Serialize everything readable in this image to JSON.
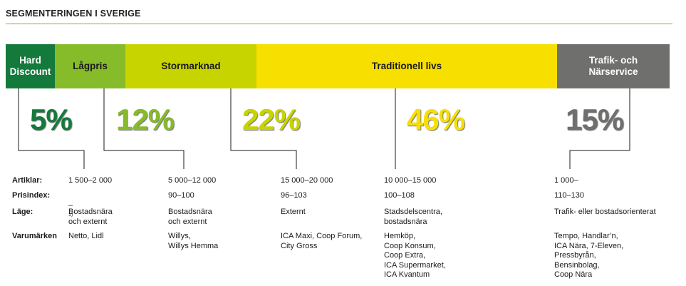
{
  "title": "SEGMENTERINGEN I SVERIGE",
  "colors": {
    "hard_discount": "#137a3c",
    "lagpris": "#86bb29",
    "stormarknad": "#c8d400",
    "traditionell": "#f7df00",
    "trafik": "#6f6f6e",
    "rule": "#9aa43a"
  },
  "segments": [
    {
      "label": "Hard\nDiscount",
      "percent": "5%"
    },
    {
      "label": "Lågpris",
      "percent": "12%"
    },
    {
      "label": "Stormarknad",
      "percent": "22%"
    },
    {
      "label": "Traditionell livs",
      "percent": "46%"
    },
    {
      "label": "Trafik- och\nNärservice",
      "percent": "15%"
    }
  ],
  "row_labels": {
    "artiklar": "Artiklar:",
    "prisindex": "Prisindex:",
    "lage": "Läge:",
    "varumarken": "Varumärken"
  },
  "columns": [
    {
      "artiklar": "1 500–2 000",
      "prisindex": "–",
      "prisindex_note": "1)",
      "lage": "Bostadsnära\noch externt",
      "varumarken": "Netto, Lidl"
    },
    {
      "artiklar": "5 000–12 000",
      "prisindex": "90–100",
      "lage": "Bostadsnära\noch externt",
      "varumarken": "Willys,\nWillys Hemma"
    },
    {
      "artiklar": "15 000–20 000",
      "prisindex": "96–103",
      "lage": "Externt",
      "varumarken": "ICA Maxi, Coop Forum,\nCity Gross"
    },
    {
      "artiklar": "10 000–15 000",
      "prisindex": "100–108",
      "lage": "Stadsdelscentra,\nbostadsnära",
      "varumarken": "Hemköp,\nCoop Konsum,\nCoop Extra,\nICA Supermarket,\nICA Kvantum"
    },
    {
      "artiklar": "1 000–",
      "prisindex": "110–130",
      "lage": "Trafik- eller bostadsorienterat",
      "varumarken": "Tempo, Handlar’n,\nICA Nära, 7-Eleven,\nPressbyrån,\nBensinbolag,\nCoop Nära"
    }
  ]
}
